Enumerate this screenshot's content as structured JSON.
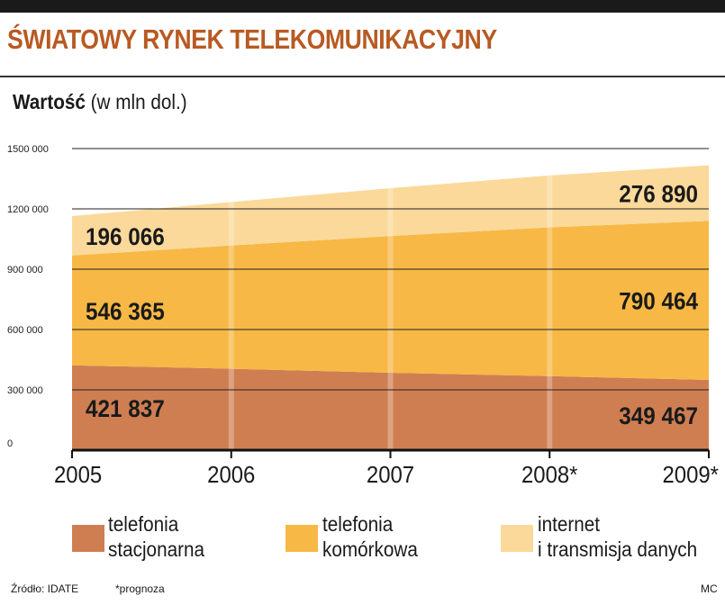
{
  "header": {
    "title": "ŚWIATOWY RYNEK TELEKOMUNIKACYJNY",
    "subtitle_bold": "Wartość",
    "subtitle_rest": "(w mln dol.)"
  },
  "colors": {
    "title": "#b85a22",
    "telefonia_stacjonarna": "#cf7e52",
    "telefonia_komorkowa": "#f7b845",
    "internet": "#fbd99a",
    "gridline": "#222222",
    "background": "#ffffff"
  },
  "chart_data": {
    "type": "area",
    "stacked": true,
    "x": [
      "2005",
      "2006",
      "2007",
      "2008*",
      "2009*"
    ],
    "ylim": [
      0,
      1500000
    ],
    "yticks": [
      "0",
      "300 000",
      "600 000",
      "900 000",
      "1200 000",
      "1500 000"
    ],
    "grid": true,
    "legend_position": "bottom",
    "series": [
      {
        "name": "telefonia stacjonarna",
        "name_lines": [
          "telefonia",
          "stacjonarna"
        ],
        "values": [
          421837,
          405000,
          385000,
          368000,
          349467
        ],
        "labels": [
          "421 837",
          "349 467"
        ]
      },
      {
        "name": "telefonia komórkowa",
        "name_lines": [
          "telefonia",
          "komórkowa"
        ],
        "values": [
          546365,
          613000,
          680000,
          740000,
          790464
        ],
        "labels": [
          "546 365",
          "790 464"
        ]
      },
      {
        "name": "internet i transmisja danych",
        "name_lines": [
          "internet",
          "i transmisja danych"
        ],
        "values": [
          196066,
          216000,
          238000,
          258000,
          276890
        ],
        "labels": [
          "196 066",
          "276 890"
        ]
      }
    ]
  },
  "footer": {
    "source": "Źródło: IDATE",
    "note": "*prognoza",
    "credit": "MC"
  }
}
